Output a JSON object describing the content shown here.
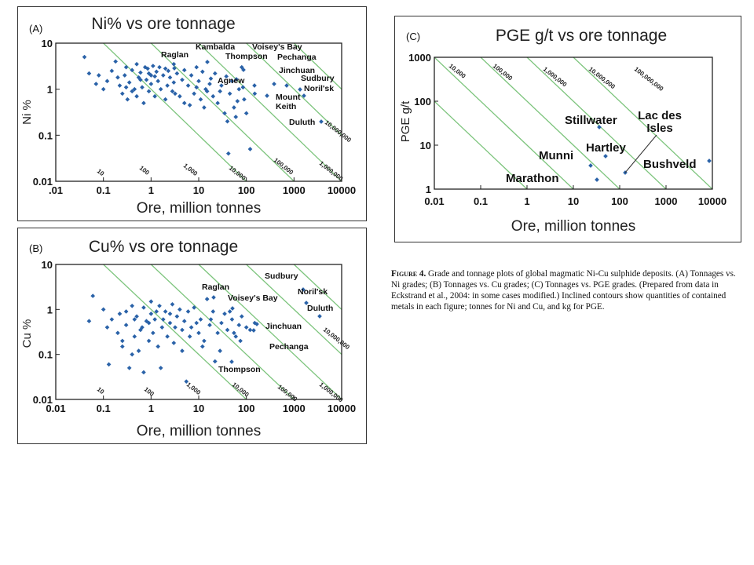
{
  "colors": {
    "contour": "#7cc47c",
    "point": "#2a62a8",
    "axis": "#222222"
  },
  "chart_data": [
    {
      "panel": "A",
      "type": "scatter",
      "panel_label": "(A)",
      "title": "Ni% vs ore tonnage",
      "xlabel": "Ore, million tonnes",
      "ylabel": "Ni %",
      "xscale": "log",
      "yscale": "log",
      "xlim": [
        0.01,
        10000
      ],
      "ylim": [
        0.01,
        10
      ],
      "xticks": [
        ".01",
        "0.1",
        "1",
        "10",
        "100",
        "1000",
        "10000"
      ],
      "yticks": [
        "10",
        "1",
        "0.1",
        "0.01"
      ],
      "contours": [
        {
          "label": "10",
          "value": 10
        },
        {
          "label": "100",
          "value": 100
        },
        {
          "label": "1,000",
          "value": 1000
        },
        {
          "label": "10,000",
          "value": 10000
        },
        {
          "label": "100,000",
          "value": 100000
        },
        {
          "label": "1,000,000",
          "value": 1000000
        },
        {
          "label": "10,000,000",
          "value": 10000000
        }
      ],
      "points": [
        [
          0.04,
          5
        ],
        [
          0.05,
          2.2
        ],
        [
          0.07,
          1.3
        ],
        [
          0.08,
          2
        ],
        [
          0.1,
          1
        ],
        [
          0.12,
          1.5
        ],
        [
          0.15,
          2.5
        ],
        [
          0.18,
          4
        ],
        [
          0.2,
          1.8
        ],
        [
          0.22,
          1.2
        ],
        [
          0.25,
          0.8
        ],
        [
          0.28,
          2
        ],
        [
          0.3,
          3
        ],
        [
          0.32,
          0.6
        ],
        [
          0.35,
          1.4
        ],
        [
          0.4,
          2.6
        ],
        [
          0.45,
          1
        ],
        [
          0.5,
          3.5
        ],
        [
          0.5,
          0.7
        ],
        [
          0.55,
          1.8
        ],
        [
          0.6,
          2.3
        ],
        [
          0.65,
          1.1
        ],
        [
          0.7,
          0.5
        ],
        [
          0.75,
          3
        ],
        [
          0.8,
          1.6
        ],
        [
          0.85,
          2.8
        ],
        [
          0.9,
          0.9
        ],
        [
          1,
          2
        ],
        [
          1,
          1.3
        ],
        [
          1.1,
          3.2
        ],
        [
          1.2,
          0.7
        ],
        [
          1.3,
          2.4
        ],
        [
          1.4,
          1.5
        ],
        [
          1.5,
          3
        ],
        [
          1.6,
          1
        ],
        [
          1.8,
          2
        ],
        [
          2,
          0.6
        ],
        [
          2,
          2.8
        ],
        [
          2.2,
          1.2
        ],
        [
          2.5,
          1.8
        ],
        [
          2.8,
          0.9
        ],
        [
          3,
          3.5
        ],
        [
          3,
          1.4
        ],
        [
          3.5,
          2.2
        ],
        [
          4,
          0.7
        ],
        [
          4.5,
          1.6
        ],
        [
          5,
          2.6
        ],
        [
          5,
          0.5
        ],
        [
          6,
          1.2
        ],
        [
          7,
          2
        ],
        [
          8,
          0.8
        ],
        [
          9,
          3
        ],
        [
          10,
          1.5
        ],
        [
          11,
          0.6
        ],
        [
          12,
          2.4
        ],
        [
          14,
          1
        ],
        [
          15,
          0.9
        ],
        [
          17,
          1.3
        ],
        [
          20,
          0.7
        ],
        [
          22,
          2.2
        ],
        [
          25,
          0.5
        ],
        [
          30,
          1.2
        ],
        [
          35,
          0.3
        ],
        [
          40,
          0.2
        ],
        [
          45,
          0.8
        ],
        [
          50,
          1.5
        ],
        [
          55,
          0.4
        ],
        [
          60,
          0.25
        ],
        [
          70,
          1
        ],
        [
          80,
          3
        ],
        [
          90,
          0.6
        ],
        [
          100,
          0.3
        ],
        [
          120,
          0.05
        ],
        [
          150,
          0.8
        ],
        [
          0.3,
          1.1
        ],
        [
          0.4,
          0.9
        ],
        [
          0.6,
          1.6
        ],
        [
          0.9,
          2.2
        ],
        [
          1.2,
          1.9
        ],
        [
          2.3,
          2.5
        ],
        [
          3.2,
          0.8
        ],
        [
          6.5,
          0.45
        ],
        [
          9,
          1.1
        ],
        [
          13,
          0.4
        ],
        [
          18,
          1.7
        ],
        [
          28,
          0.9
        ],
        [
          38,
          1.9
        ],
        [
          42,
          0.04
        ],
        [
          65,
          0.55
        ],
        [
          85,
          1.1
        ]
      ],
      "named": [
        {
          "name": "Raglan",
          "x": 20,
          "y": 2.5
        },
        {
          "name": "Kambalda",
          "x": 60,
          "y": 3
        },
        {
          "name": "Thompson",
          "x": 100,
          "y": 3.4
        },
        {
          "name": "Voisey's Bay",
          "x": 130,
          "y": 1.1
        },
        {
          "name": "Pechanga",
          "x": 300,
          "y": 1.2
        },
        {
          "name": "Agnew",
          "x": 40,
          "y": 1.6
        },
        {
          "name": "Jinchuan",
          "x": 500,
          "y": 1.0
        },
        {
          "name": "Mount Keith",
          "x": 200,
          "y": 0.65
        },
        {
          "name": "Sudbury",
          "x": 1600,
          "y": 1.2
        },
        {
          "name": "Noril'sk",
          "x": 2000,
          "y": 0.8
        },
        {
          "name": "Duluth",
          "x": 4000,
          "y": 0.22
        }
      ]
    },
    {
      "panel": "B",
      "type": "scatter",
      "panel_label": "(B)",
      "title": "Cu% vs ore tonnage",
      "xlabel": "Ore, million tonnes",
      "ylabel": "Cu %",
      "xscale": "log",
      "yscale": "log",
      "xlim": [
        0.01,
        10000
      ],
      "ylim": [
        0.01,
        10
      ],
      "xticks": [
        "0.01",
        "0.1",
        "1",
        "10",
        "100",
        "1000",
        "10000"
      ],
      "yticks": [
        "10",
        "1",
        "0.1",
        "0.01"
      ],
      "contours": [
        {
          "label": "10",
          "value": 10
        },
        {
          "label": "100",
          "value": 100
        },
        {
          "label": "1,000",
          "value": 1000
        },
        {
          "label": "10,000",
          "value": 10000
        },
        {
          "label": "100,000",
          "value": 100000
        },
        {
          "label": "1,000,000",
          "value": 1000000
        },
        {
          "label": "10,000,000",
          "value": 10000000
        }
      ],
      "points": [
        [
          0.05,
          0.55
        ],
        [
          0.06,
          2
        ],
        [
          0.1,
          1
        ],
        [
          0.12,
          0.4
        ],
        [
          0.15,
          0.6
        ],
        [
          0.2,
          0.3
        ],
        [
          0.22,
          0.8
        ],
        [
          0.25,
          0.2
        ],
        [
          0.25,
          0.15
        ],
        [
          0.3,
          0.45
        ],
        [
          0.35,
          0.05
        ],
        [
          0.4,
          1.2
        ],
        [
          0.45,
          0.25
        ],
        [
          0.5,
          0.7
        ],
        [
          0.55,
          0.12
        ],
        [
          0.6,
          0.35
        ],
        [
          0.7,
          1.1
        ],
        [
          0.8,
          0.55
        ],
        [
          0.9,
          0.2
        ],
        [
          1,
          0.8
        ],
        [
          1,
          1.5
        ],
        [
          1.1,
          0.3
        ],
        [
          1.2,
          0.6
        ],
        [
          1.4,
          0.15
        ],
        [
          1.5,
          1.2
        ],
        [
          1.7,
          0.4
        ],
        [
          2,
          0.9
        ],
        [
          2.2,
          0.25
        ],
        [
          2.5,
          0.5
        ],
        [
          2.8,
          1.3
        ],
        [
          3,
          0.18
        ],
        [
          3.5,
          0.7
        ],
        [
          4,
          1
        ],
        [
          4.5,
          0.35
        ],
        [
          5,
          0.55
        ],
        [
          5.5,
          0.025
        ],
        [
          6,
          0.9
        ],
        [
          7,
          0.4
        ],
        [
          8,
          1.1
        ],
        [
          10,
          0.3
        ],
        [
          11,
          0.6
        ],
        [
          13,
          0.2
        ],
        [
          15,
          1.7
        ],
        [
          17,
          0.45
        ],
        [
          20,
          0.9
        ],
        [
          25,
          0.3
        ],
        [
          30,
          0.5
        ],
        [
          35,
          0.8
        ],
        [
          40,
          0.35
        ],
        [
          50,
          0.6
        ],
        [
          60,
          0.25
        ],
        [
          70,
          0.45
        ],
        [
          80,
          0.7
        ],
        [
          100,
          0.4
        ],
        [
          120,
          0.35
        ],
        [
          150,
          0.5
        ],
        [
          0.3,
          0.9
        ],
        [
          0.45,
          0.6
        ],
        [
          0.65,
          0.4
        ],
        [
          0.9,
          0.5
        ],
        [
          1.3,
          0.9
        ],
        [
          1.8,
          0.6
        ],
        [
          2.5,
          0.8
        ],
        [
          3.2,
          0.4
        ],
        [
          4.5,
          0.12
        ],
        [
          6.5,
          0.25
        ],
        [
          9,
          0.5
        ],
        [
          12,
          0.15
        ],
        [
          18,
          0.6
        ],
        [
          22,
          0.07
        ],
        [
          28,
          0.12
        ],
        [
          45,
          0.9
        ],
        [
          55,
          0.3
        ],
        [
          0.7,
          0.04
        ],
        [
          1.6,
          0.05
        ],
        [
          0.13,
          0.06
        ],
        [
          0.4,
          0.1
        ],
        [
          75,
          0.2
        ]
      ],
      "named": [
        {
          "name": "Raglan",
          "x": 20,
          "y": 2.5
        },
        {
          "name": "Voisey's Bay",
          "x": 130,
          "y": 1.8
        },
        {
          "name": "Sudbury",
          "x": 1600,
          "y": 1.3
        },
        {
          "name": "Noril'sk",
          "x": 2000,
          "y": 1.4
        },
        {
          "name": "Duluth",
          "x": 4000,
          "y": 0.65
        },
        {
          "name": "Jinchuan",
          "x": 500,
          "y": 0.45
        },
        {
          "name": "Pechanga",
          "x": 300,
          "y": 0.35
        },
        {
          "name": "Thompson",
          "x": 100,
          "y": 0.13
        }
      ]
    },
    {
      "panel": "C",
      "type": "scatter",
      "panel_label": "(C)",
      "title": "PGE g/t vs ore tonnage",
      "xlabel": "Ore, million tonnes",
      "ylabel": "PGE  g/t",
      "xscale": "log",
      "yscale": "log",
      "xlim": [
        0.01,
        10000
      ],
      "ylim": [
        1,
        1000
      ],
      "xticks": [
        "0.01",
        "0.1",
        "1",
        "10",
        "100",
        "1000",
        "10000"
      ],
      "yticks": [
        "1000",
        "100",
        "10",
        "1"
      ],
      "contours": [
        {
          "label": "10,000",
          "value": 10000
        },
        {
          "label": "100,000",
          "value": 100000
        },
        {
          "label": "1,000,000",
          "value": 1000000
        },
        {
          "label": "10,000,000",
          "value": 10000000
        },
        {
          "label": "100,000,000",
          "value": 100000000
        }
      ],
      "points": [],
      "named": [
        {
          "name": "Stillwater",
          "x": 35,
          "y": 21
        },
        {
          "name": "Hartley",
          "x": 45,
          "y": 5.3
        },
        {
          "name": "Munni",
          "x": 22,
          "y": 2.9
        },
        {
          "name": "Marathon",
          "x": 35,
          "y": 1.45
        },
        {
          "name": "Lac des Isles",
          "x": 130,
          "y": 1.7
        },
        {
          "name": "Bushveld",
          "x": 10000,
          "y": 4.1
        }
      ]
    }
  ],
  "caption": {
    "head": "Figure 4.",
    "text": "Grade and tonnage plots of global magmatic Ni-Cu sulphide deposits. (A) Tonnages vs. Ni grades; (B) Tonnages vs. Cu grades; (C) Tonnages vs. PGE grades. (Prepared from data in Eckstrand et al., 2004: in some cases modified.) Inclined contours show quantities of contained metals in each figure; tonnes for Ni and Cu, and kg for PGE."
  }
}
